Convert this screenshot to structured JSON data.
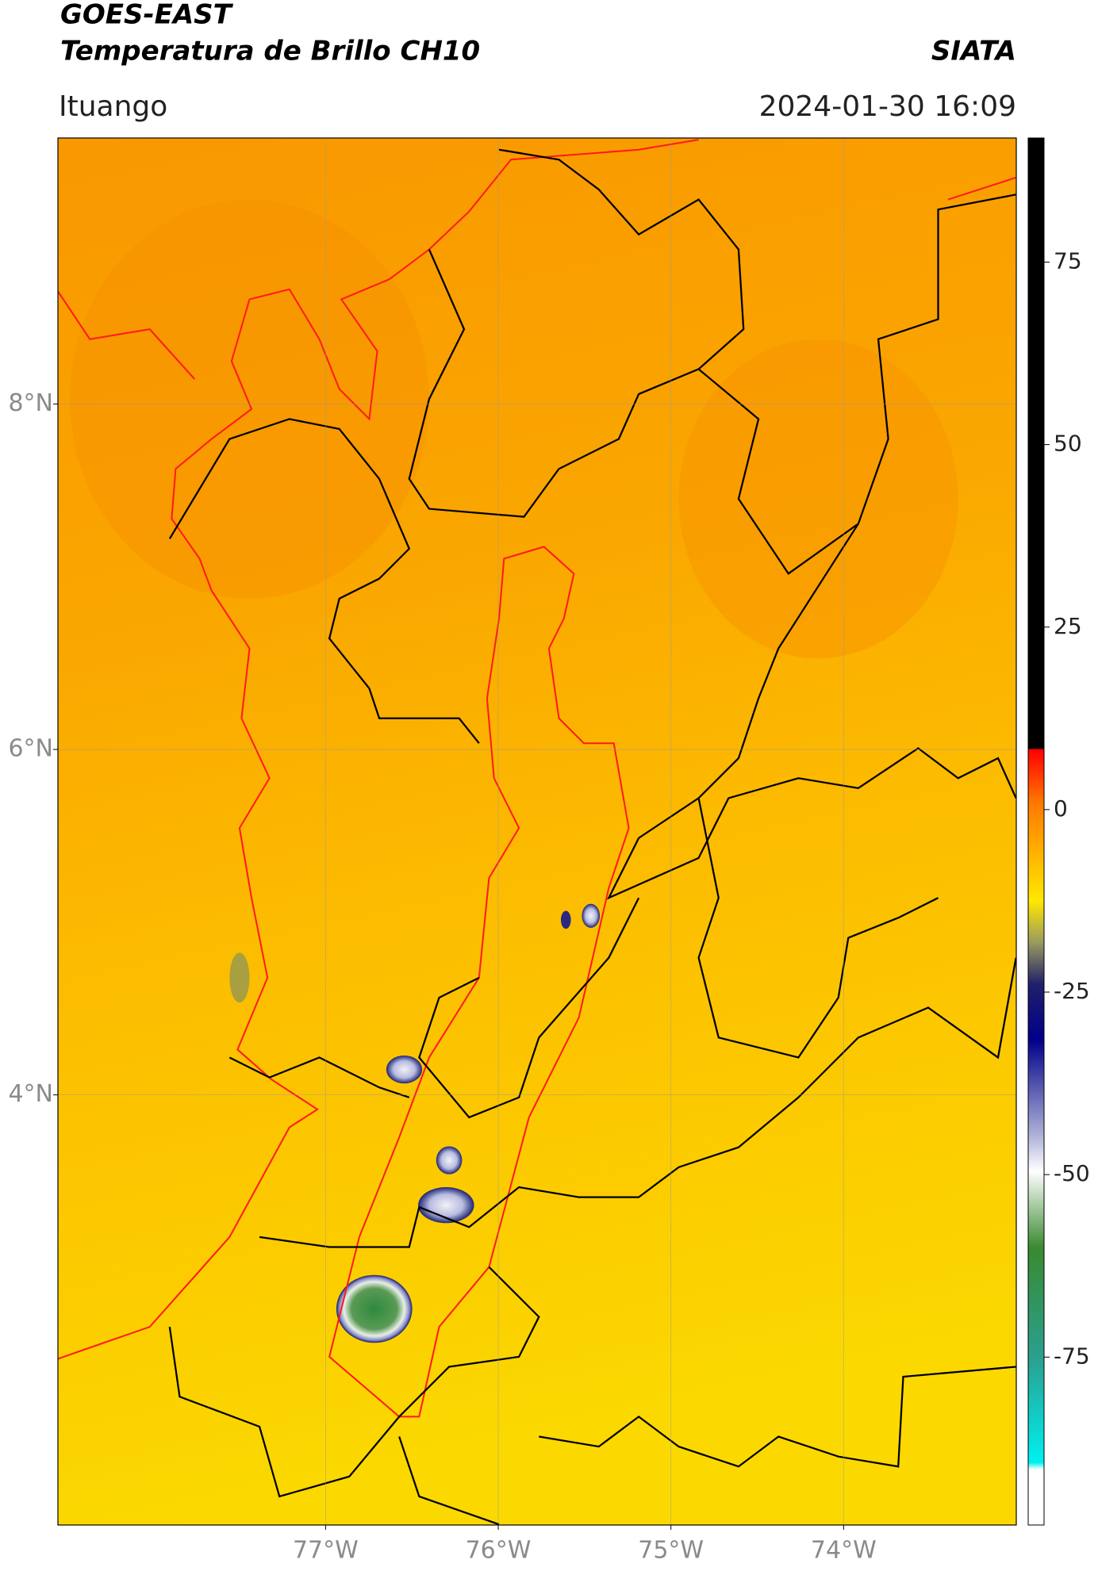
{
  "header": {
    "title": "GOES-EAST",
    "subtitle": "Temperatura de Brillo CH10",
    "brand": "SIATA",
    "location": "Ituango",
    "datetime": "2024-01-30 16:09"
  },
  "map": {
    "xlim": [
      -78.55,
      -73.0
    ],
    "ylim": [
      1.51,
      9.54
    ],
    "xticks": [
      {
        "value": -77,
        "label": "77°W"
      },
      {
        "value": -76,
        "label": "76°W"
      },
      {
        "value": -75,
        "label": "75°W"
      },
      {
        "value": -74,
        "label": "74°W"
      }
    ],
    "yticks": [
      {
        "value": 8,
        "label": "8°N"
      },
      {
        "value": 6,
        "label": "6°N"
      },
      {
        "value": 4,
        "label": "4°N"
      }
    ],
    "grid": true
  },
  "colorbar": {
    "clim": [
      -98,
      92
    ],
    "ticks": [
      75,
      50,
      25,
      0,
      -25,
      -50,
      -75
    ]
  }
}
